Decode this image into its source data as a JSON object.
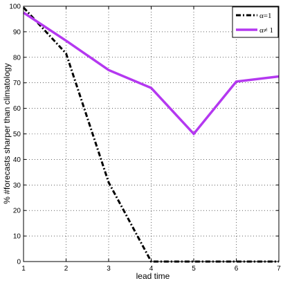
{
  "chart_data": {
    "type": "line",
    "title": "",
    "xlabel": "lead time",
    "ylabel": "% #forecasts sharper than climatology",
    "x": [
      1,
      2,
      3,
      4,
      5,
      6,
      7
    ],
    "xlim": [
      1,
      7
    ],
    "ylim": [
      0,
      100
    ],
    "xticks": [
      "1",
      "2",
      "3",
      "4",
      "5",
      "6",
      "7"
    ],
    "yticks": [
      "0",
      "10",
      "20",
      "30",
      "40",
      "50",
      "60",
      "70",
      "80",
      "90",
      "100"
    ],
    "grid": true,
    "legend_position": "top-right",
    "series": [
      {
        "name": "α=1",
        "values": [
          99.5,
          81.5,
          31,
          0,
          0,
          0,
          0
        ],
        "color": "#000000",
        "style": "dash-dot"
      },
      {
        "name": "α≠ 1",
        "values": [
          97.5,
          86.5,
          75,
          68,
          50,
          70.5,
          72.5
        ],
        "color": "#b438f0",
        "style": "solid"
      }
    ]
  }
}
